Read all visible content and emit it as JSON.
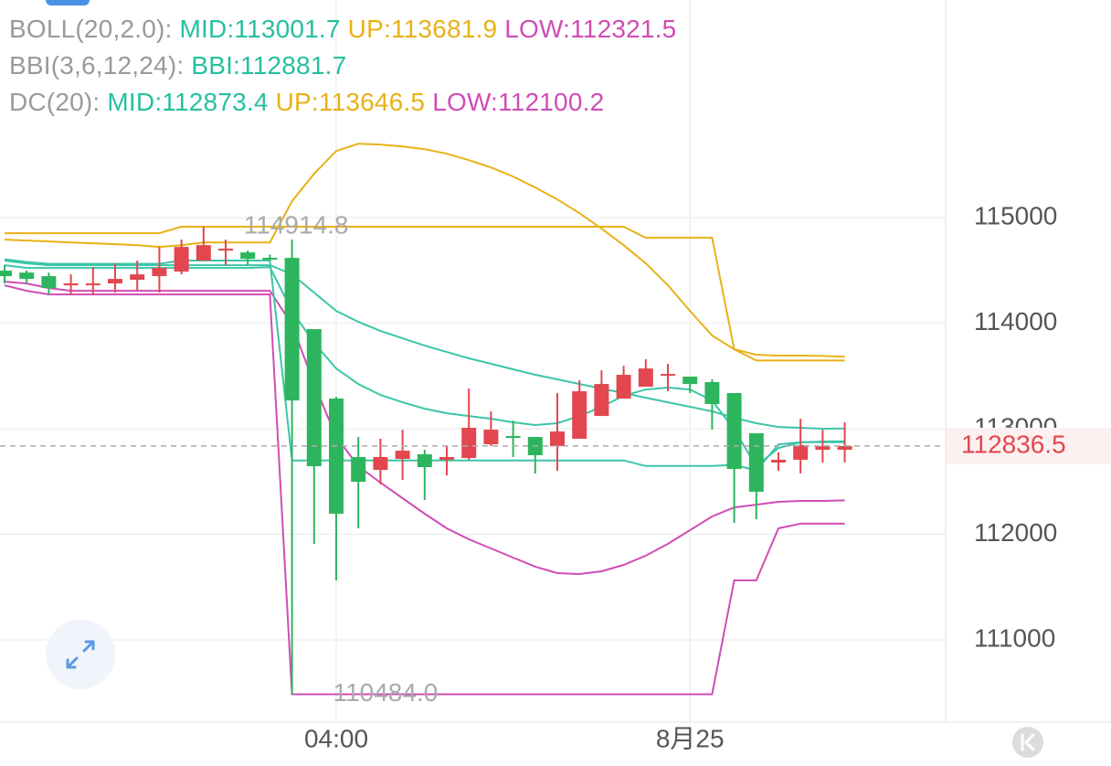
{
  "chart_data": {
    "type": "candlestick",
    "header": [
      {
        "label": "BOLL(20,2.0):",
        "items": [
          {
            "text": "MID:113001.7",
            "color": "#26bf9f"
          },
          {
            "text": "UP:113681.9",
            "color": "#e8b117"
          },
          {
            "text": "LOW:112321.5",
            "color": "#d04cb6"
          }
        ]
      },
      {
        "label": "BBI(3,6,12,24):",
        "items": [
          {
            "text": "BBI:112881.7",
            "color": "#26bf9f"
          }
        ]
      },
      {
        "label": "DC(20):",
        "items": [
          {
            "text": "MID:112873.4",
            "color": "#26bf9f"
          },
          {
            "text": "UP:113646.5",
            "color": "#e8b117"
          },
          {
            "text": "LOW:112100.2",
            "color": "#d04cb6"
          }
        ]
      }
    ],
    "categories": [
      null,
      null,
      null,
      null,
      null,
      null,
      null,
      null,
      null,
      null,
      null,
      null,
      null,
      null,
      null,
      "04:00",
      null,
      null,
      null,
      null,
      null,
      null,
      null,
      null,
      null,
      null,
      null,
      null,
      null,
      null,
      null,
      "8月25",
      null,
      null,
      null,
      null,
      null,
      null,
      null
    ],
    "open": [
      114498,
      114480,
      114446,
      114359,
      114360,
      114377,
      114411,
      114446,
      114489,
      114593,
      114688,
      114671,
      114620,
      114619,
      113944,
      113286,
      112732,
      112610,
      112714,
      112758,
      112706,
      112723,
      112853,
      112931,
      112922,
      112835,
      112905,
      113121,
      113286,
      113398,
      113502,
      113494,
      113442,
      113338,
      112957,
      112680,
      112706,
      112801,
      112801
    ],
    "high": [
      114550,
      114500,
      114480,
      114463,
      114532,
      114567,
      114593,
      114723,
      114792,
      114914.8,
      114792,
      114688,
      114650,
      114792,
      113944,
      113300,
      112922,
      112905,
      112991,
      112801,
      112844,
      113381,
      113165,
      113078,
      112922,
      113338,
      113459,
      113554,
      113597,
      113658,
      113615,
      113494,
      113468,
      113338,
      112957,
      112775,
      113095,
      112991,
      113061
    ],
    "low": [
      114377,
      114380,
      114273,
      114273,
      114273,
      114290,
      114307,
      114290,
      114463,
      114593,
      114550,
      114550,
      114590,
      110484.0,
      111909,
      111563,
      112056,
      112472,
      112515,
      112325,
      112558,
      112706,
      112835,
      112732,
      112576,
      112602,
      112905,
      113121,
      113286,
      113398,
      113355,
      113338,
      112991,
      112108,
      112143,
      112602,
      112576,
      112680,
      112680
    ],
    "close": [
      114446,
      114420,
      114333,
      114377,
      114377,
      114420,
      114463,
      114524,
      114723,
      114740,
      114706,
      114610,
      114610,
      113268,
      112645,
      112195,
      112498,
      112732,
      112792,
      112636,
      112732,
      113009,
      112991,
      112913,
      112749,
      112974,
      113355,
      113424,
      113511,
      113571,
      113519,
      113424,
      113234,
      112619,
      112403,
      112706,
      112844,
      112835,
      112836.5
    ],
    "up_color": "#e2474f",
    "down_color": "#2db55d",
    "series": [
      {
        "color": "#e8b117",
        "values": [
          114792,
          114784,
          114775,
          114766,
          114758,
          114749,
          114740,
          114723,
          114740,
          114766,
          114766,
          114766,
          114766,
          115156,
          115416,
          115632,
          115701,
          115693,
          115675,
          115649,
          115606,
          115545,
          115476,
          115390,
          115286,
          115173,
          115043,
          114896,
          114740,
          114567,
          114359,
          114117,
          113883,
          113753,
          113701,
          113693,
          113693,
          113690,
          113681.9
        ]
      },
      {
        "color": "#3cc5a8",
        "values": [
          114593,
          114567,
          114550,
          114550,
          114550,
          114550,
          114550,
          114550,
          114550,
          114550,
          114550,
          114550,
          114550,
          114463,
          114290,
          114117,
          114013,
          113926,
          113857,
          113788,
          113727,
          113667,
          113615,
          113563,
          113511,
          113468,
          113424,
          113381,
          113338,
          113294,
          113251,
          113208,
          113165,
          113104,
          113052,
          113017,
          113009,
          113000,
          113001.7
        ]
      },
      {
        "color": "#d04cb6",
        "values": [
          114394,
          114377,
          114333,
          114307,
          114307,
          114307,
          114307,
          114307,
          114307,
          114307,
          114307,
          114307,
          114307,
          113987,
          113424,
          112922,
          112645,
          112489,
          112342,
          112195,
          112056,
          111952,
          111866,
          111779,
          111693,
          111632,
          111623,
          111649,
          111710,
          111797,
          111909,
          112039,
          112169,
          112255,
          112281,
          112307,
          112316,
          112316,
          112321.5
        ]
      },
      {
        "color": "#3cc5a8",
        "values": [
          114550,
          114524,
          114524,
          114524,
          114524,
          114524,
          114524,
          114524,
          114524,
          114524,
          114524,
          114524,
          114532,
          114117,
          113814,
          113571,
          113424,
          113320,
          113251,
          113190,
          113147,
          113121,
          113095,
          113061,
          113035,
          113052,
          113121,
          113208,
          113312,
          113372,
          113390,
          113372,
          113268,
          112991,
          112645,
          112818,
          112870,
          112879,
          112881.7
        ]
      },
      {
        "color": "#3cc5a8",
        "values": [
          114606,
          114580,
          114563,
          114563,
          114563,
          114563,
          114563,
          114563,
          114594,
          114594,
          114594,
          114594,
          114594,
          112699.4,
          112699.4,
          112699.4,
          112699.4,
          112699.4,
          112699.4,
          112699.4,
          112699.4,
          112699.4,
          112699.4,
          112699.4,
          112699.4,
          112699.4,
          112699.4,
          112699.4,
          112699.4,
          112647,
          112647,
          112647,
          112647,
          112658,
          112604.8,
          112851.3,
          112873.4,
          112873.4,
          112873.4
        ]
      },
      {
        "color": "#e8b117",
        "values": [
          114853,
          114853,
          114853,
          114853,
          114853,
          114853,
          114853,
          114853,
          114914.8,
          114914.8,
          114914.8,
          114914.8,
          114914.8,
          114914.8,
          114914.8,
          114914.8,
          114914.8,
          114914.8,
          114914.8,
          114914.8,
          114914.8,
          114914.8,
          114914.8,
          114914.8,
          114914.8,
          114914.8,
          114914.8,
          114914.8,
          114914.8,
          114810,
          114810,
          114810,
          114810,
          113753,
          113646.5,
          113646.5,
          113646.5,
          113646.5,
          113646.5
        ]
      },
      {
        "color": "#d04cb6",
        "values": [
          114359,
          114307,
          114273,
          114273,
          114273,
          114273,
          114273,
          114273,
          114273,
          114273,
          114273,
          114273,
          114273,
          110484.0,
          110484.0,
          110484.0,
          110484.0,
          110484.0,
          110484.0,
          110484.0,
          110484.0,
          110484.0,
          110484.0,
          110484.0,
          110484.0,
          110484.0,
          110484.0,
          110484.0,
          110484.0,
          110484.0,
          110484.0,
          110484.0,
          110484.0,
          111563,
          111563,
          112056,
          112100.2,
          112100.2,
          112100.2
        ]
      }
    ],
    "high_label": 114914.8,
    "low_label": {
      "value": 110484,
      "label": "110484.0"
    },
    "current_price": 112836.5,
    "ylim": [
      110220,
      115850
    ],
    "yticks": [
      111000,
      112000,
      113000,
      114000,
      115000
    ],
    "grid": true
  }
}
